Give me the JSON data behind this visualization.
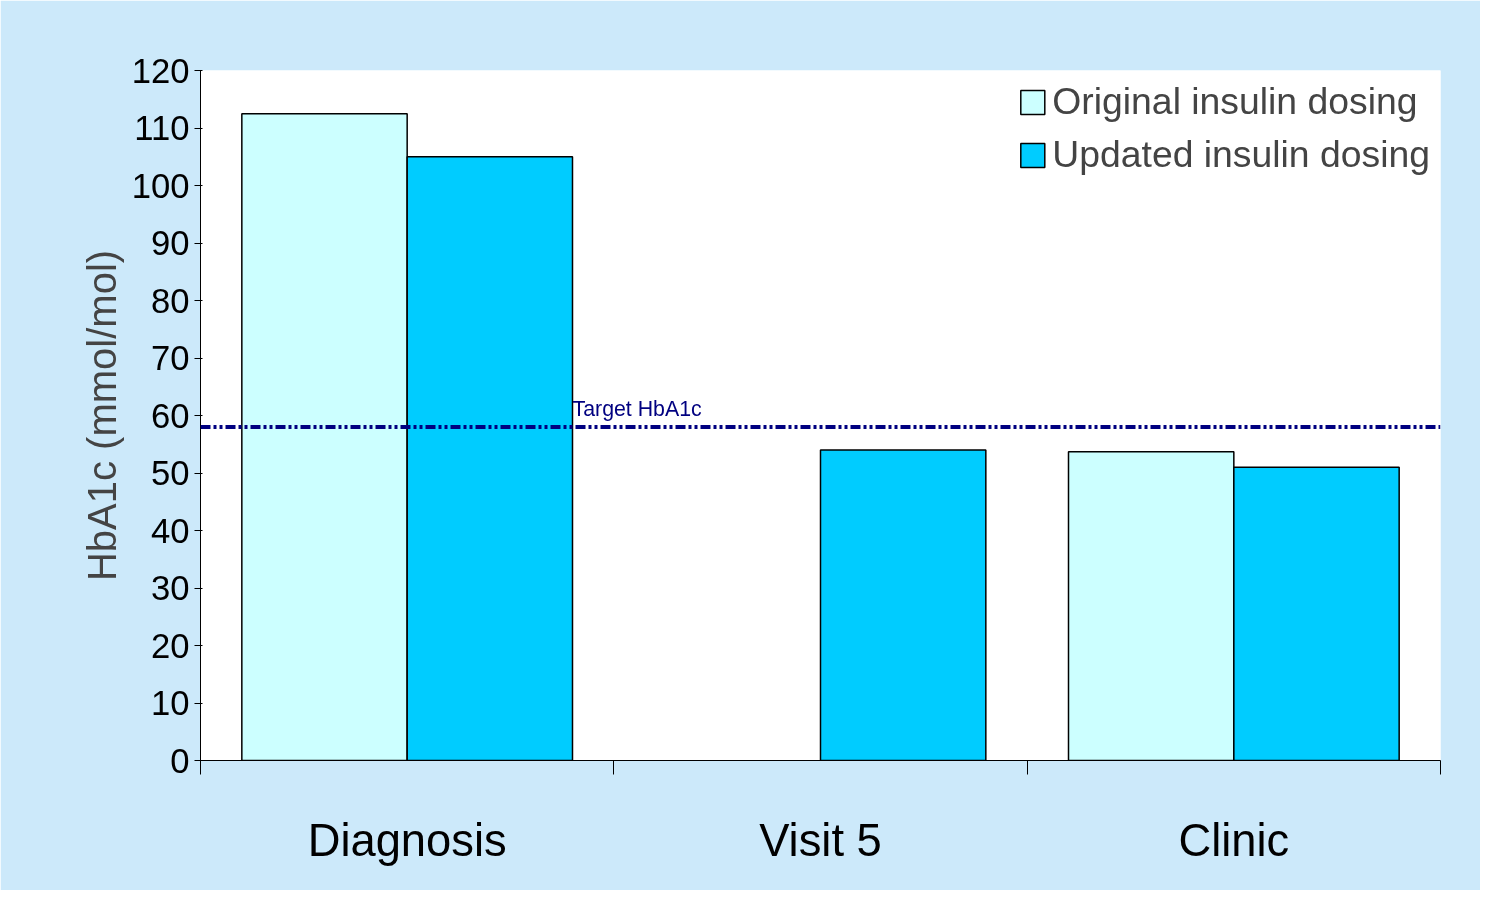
{
  "chart_data": {
    "type": "bar",
    "categories": [
      "Diagnosis",
      "Visit 5",
      "Clinic"
    ],
    "ylabel": "HbA1c (mmol/mol)",
    "ylim": [
      0,
      120
    ],
    "yticks": [
      0,
      10,
      20,
      30,
      40,
      50,
      60,
      70,
      80,
      90,
      100,
      110,
      120
    ],
    "series": [
      {
        "name": "Original insulin dosing",
        "color": "#ccffff",
        "values": [
          112.5,
          null,
          53.7
        ]
      },
      {
        "name": "Updated insulin dosing",
        "color": "#00ccff",
        "values": [
          105,
          54,
          51
        ]
      }
    ],
    "ref_lines": [
      {
        "axis": "y",
        "value": 58,
        "label": "Target HbA1c",
        "color": "#000080",
        "line_style": "dashdotdot"
      }
    ],
    "legend": "top right",
    "grid": false
  }
}
